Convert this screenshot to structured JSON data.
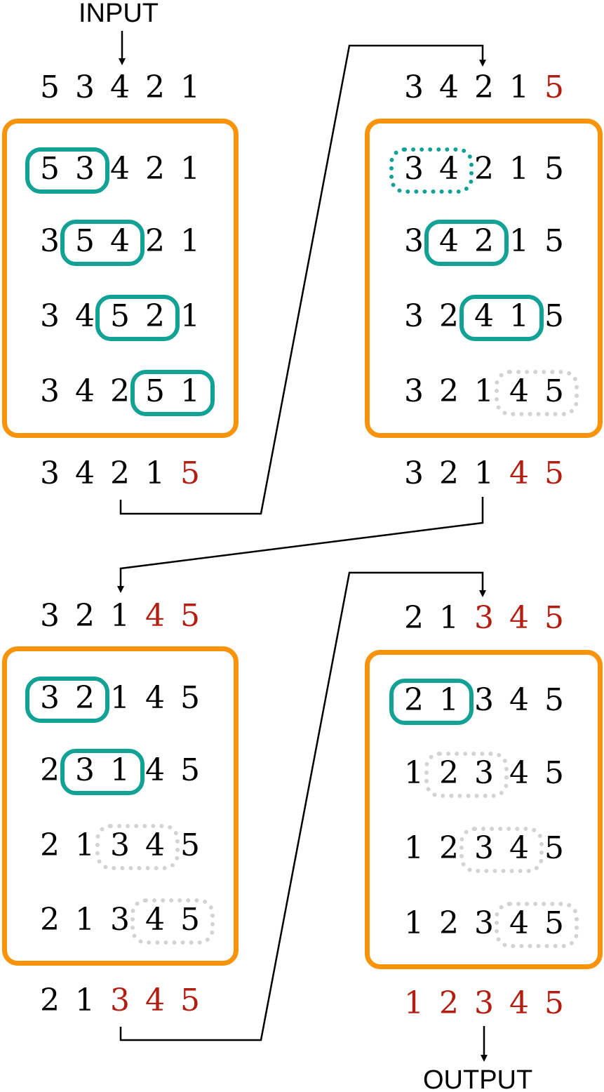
{
  "labels": {
    "input": "INPUT",
    "output": "OUTPUT"
  },
  "colors": {
    "pass_box": "#f8930a",
    "swap_pill": "#12a195",
    "skipped_pill": "#d3d3d3",
    "sorted_digit": "#b41e12",
    "digit": "#000000",
    "connector": "#000000"
  },
  "passes": [
    {
      "input_sequence": [
        {
          "v": "5",
          "sorted": false
        },
        {
          "v": "3",
          "sorted": false
        },
        {
          "v": "4",
          "sorted": false
        },
        {
          "v": "2",
          "sorted": false
        },
        {
          "v": "1",
          "sorted": false
        }
      ],
      "steps": [
        {
          "digits": [
            "5",
            "3",
            "4",
            "2",
            "1"
          ],
          "pair_index": 0,
          "pair_style": "swap"
        },
        {
          "digits": [
            "3",
            "5",
            "4",
            "2",
            "1"
          ],
          "pair_index": 1,
          "pair_style": "swap"
        },
        {
          "digits": [
            "3",
            "4",
            "5",
            "2",
            "1"
          ],
          "pair_index": 2,
          "pair_style": "swap"
        },
        {
          "digits": [
            "3",
            "4",
            "2",
            "5",
            "1"
          ],
          "pair_index": 3,
          "pair_style": "swap"
        }
      ],
      "output_sequence": [
        {
          "v": "3",
          "sorted": false
        },
        {
          "v": "4",
          "sorted": false
        },
        {
          "v": "2",
          "sorted": false
        },
        {
          "v": "1",
          "sorted": false
        },
        {
          "v": "5",
          "sorted": true
        }
      ]
    },
    {
      "input_sequence": [
        {
          "v": "3",
          "sorted": false
        },
        {
          "v": "4",
          "sorted": false
        },
        {
          "v": "2",
          "sorted": false
        },
        {
          "v": "1",
          "sorted": false
        },
        {
          "v": "5",
          "sorted": true
        }
      ],
      "steps": [
        {
          "digits": [
            "3",
            "4",
            "2",
            "1",
            "5"
          ],
          "pair_index": 0,
          "pair_style": "compare"
        },
        {
          "digits": [
            "3",
            "4",
            "2",
            "1",
            "5"
          ],
          "pair_index": 1,
          "pair_style": "swap"
        },
        {
          "digits": [
            "3",
            "2",
            "4",
            "1",
            "5"
          ],
          "pair_index": 2,
          "pair_style": "swap"
        },
        {
          "digits": [
            "3",
            "2",
            "1",
            "4",
            "5"
          ],
          "pair_index": 3,
          "pair_style": "skip"
        }
      ],
      "output_sequence": [
        {
          "v": "3",
          "sorted": false
        },
        {
          "v": "2",
          "sorted": false
        },
        {
          "v": "1",
          "sorted": false
        },
        {
          "v": "4",
          "sorted": true
        },
        {
          "v": "5",
          "sorted": true
        }
      ]
    },
    {
      "input_sequence": [
        {
          "v": "3",
          "sorted": false
        },
        {
          "v": "2",
          "sorted": false
        },
        {
          "v": "1",
          "sorted": false
        },
        {
          "v": "4",
          "sorted": true
        },
        {
          "v": "5",
          "sorted": true
        }
      ],
      "steps": [
        {
          "digits": [
            "3",
            "2",
            "1",
            "4",
            "5"
          ],
          "pair_index": 0,
          "pair_style": "swap"
        },
        {
          "digits": [
            "2",
            "3",
            "1",
            "4",
            "5"
          ],
          "pair_index": 1,
          "pair_style": "swap"
        },
        {
          "digits": [
            "2",
            "1",
            "3",
            "4",
            "5"
          ],
          "pair_index": 2,
          "pair_style": "skip"
        },
        {
          "digits": [
            "2",
            "1",
            "3",
            "4",
            "5"
          ],
          "pair_index": 3,
          "pair_style": "skip"
        }
      ],
      "output_sequence": [
        {
          "v": "2",
          "sorted": false
        },
        {
          "v": "1",
          "sorted": false
        },
        {
          "v": "3",
          "sorted": true
        },
        {
          "v": "4",
          "sorted": true
        },
        {
          "v": "5",
          "sorted": true
        }
      ]
    },
    {
      "input_sequence": [
        {
          "v": "2",
          "sorted": false
        },
        {
          "v": "1",
          "sorted": false
        },
        {
          "v": "3",
          "sorted": true
        },
        {
          "v": "4",
          "sorted": true
        },
        {
          "v": "5",
          "sorted": true
        }
      ],
      "steps": [
        {
          "digits": [
            "2",
            "1",
            "3",
            "4",
            "5"
          ],
          "pair_index": 0,
          "pair_style": "swap"
        },
        {
          "digits": [
            "1",
            "2",
            "3",
            "4",
            "5"
          ],
          "pair_index": 1,
          "pair_style": "skip"
        },
        {
          "digits": [
            "1",
            "2",
            "3",
            "4",
            "5"
          ],
          "pair_index": 2,
          "pair_style": "skip"
        },
        {
          "digits": [
            "1",
            "2",
            "3",
            "4",
            "5"
          ],
          "pair_index": 3,
          "pair_style": "skip"
        }
      ],
      "output_sequence": [
        {
          "v": "1",
          "sorted": true
        },
        {
          "v": "2",
          "sorted": true
        },
        {
          "v": "3",
          "sorted": true
        },
        {
          "v": "4",
          "sorted": true
        },
        {
          "v": "5",
          "sorted": true
        }
      ]
    }
  ]
}
